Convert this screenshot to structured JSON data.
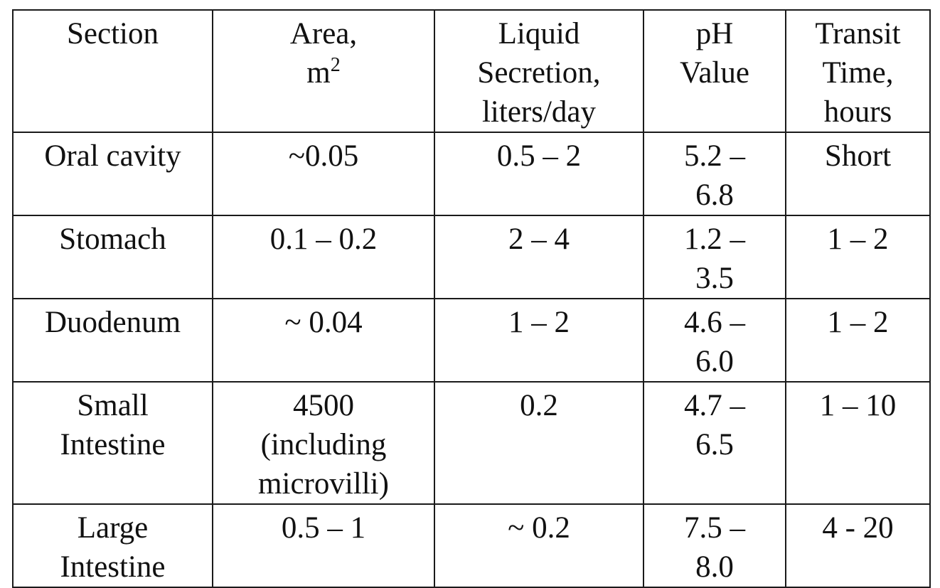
{
  "table": {
    "headers": {
      "section": "Section",
      "area_line1": "Area,",
      "area_unit": "m",
      "area_exponent": "2",
      "liquid": "Liquid\nSecretion,\nliters/day",
      "ph": "pH\nValue",
      "transit": "Transit\nTime,\nhours"
    },
    "rows": [
      {
        "section": "Oral cavity",
        "area": "~0.05",
        "liquid": "0.5 – 2",
        "ph": "5.2 –\n6.8",
        "transit": "Short"
      },
      {
        "section": "Stomach",
        "area": "0.1 – 0.2",
        "liquid": "2 – 4",
        "ph": "1.2 –\n3.5",
        "transit": "1 – 2"
      },
      {
        "section": "Duodenum",
        "area": "~ 0.04",
        "liquid": "1 – 2",
        "ph": "4.6 –\n6.0",
        "transit": "1 – 2"
      },
      {
        "section": "Small\nIntestine",
        "area": "4500\n(including\nmicrovilli)",
        "liquid": "0.2",
        "ph": "4.7 –\n6.5",
        "transit": "1 – 10"
      },
      {
        "section": "Large\nIntestine",
        "area": "0.5 – 1",
        "liquid": "~ 0.2",
        "ph": "7.5 –\n8.0",
        "transit": "4 - 20"
      }
    ]
  }
}
